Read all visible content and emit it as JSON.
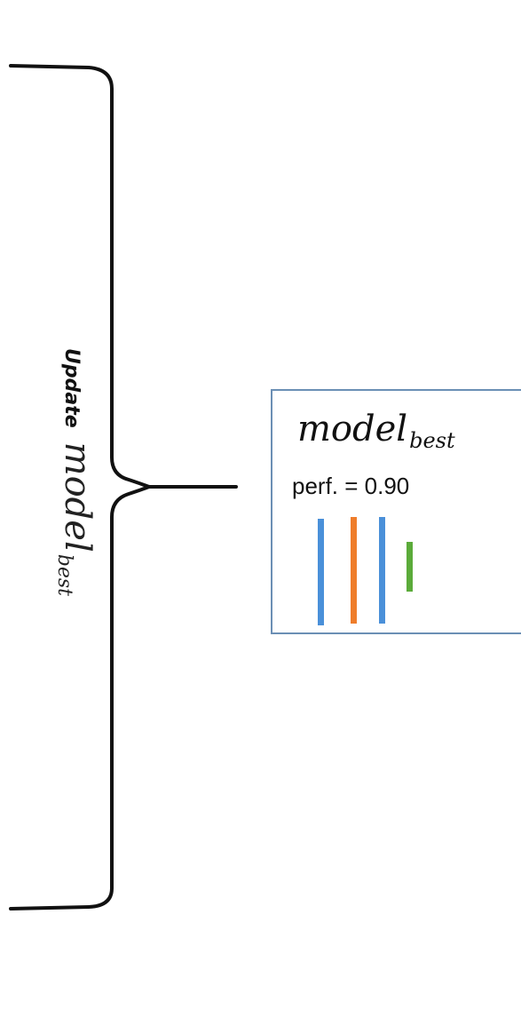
{
  "rotated_label": {
    "update": "Update",
    "math_main": "model",
    "math_sub": "best"
  },
  "model_box": {
    "title_main": "model",
    "title_sub": "best",
    "perf_text": "perf. = 0.90",
    "border_color": "#6b8fb5",
    "bars": [
      {
        "color": "#4a90d9",
        "name": "bar-blue-1"
      },
      {
        "color": "#ef7d2b",
        "name": "bar-orange"
      },
      {
        "color": "#4a90d9",
        "name": "bar-blue-2"
      },
      {
        "color": "#5bab3a",
        "name": "bar-green"
      }
    ]
  }
}
